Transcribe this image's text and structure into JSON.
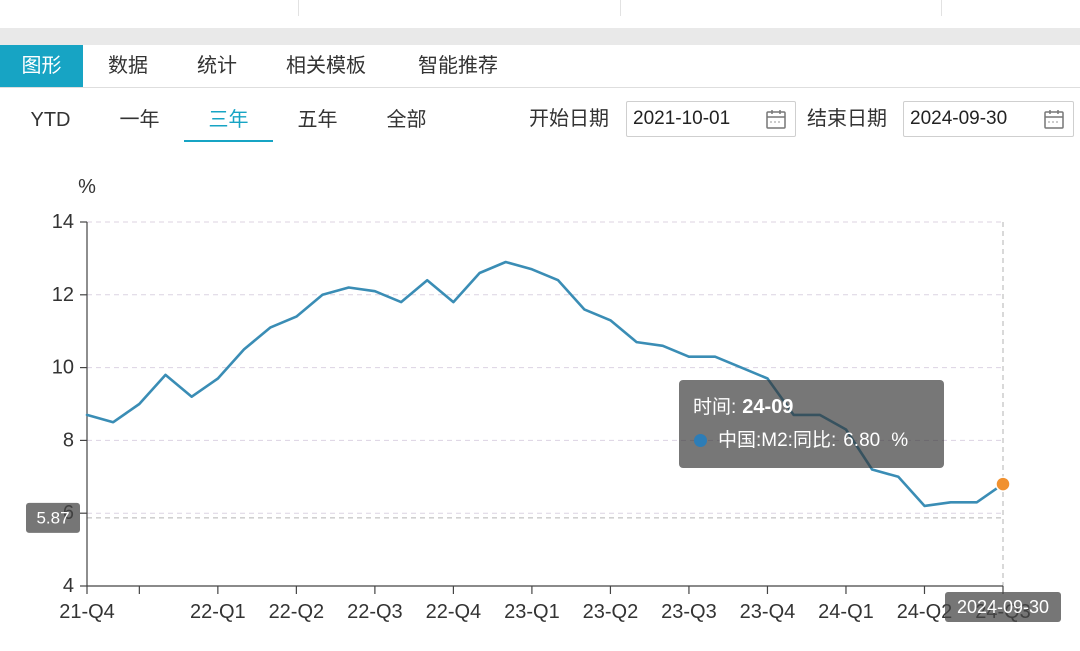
{
  "tabs": [
    {
      "label": "图形",
      "active": true
    },
    {
      "label": "数据",
      "active": false
    },
    {
      "label": "统计",
      "active": false
    },
    {
      "label": "相关模板",
      "active": false
    },
    {
      "label": "智能推荐",
      "active": false
    }
  ],
  "range_buttons": [
    {
      "label": "YTD",
      "active": false
    },
    {
      "label": "一年",
      "active": false
    },
    {
      "label": "三年",
      "active": true
    },
    {
      "label": "五年",
      "active": false
    },
    {
      "label": "全部",
      "active": false
    }
  ],
  "date_range": {
    "start_label": "开始日期",
    "start_value": "2021-10-01",
    "end_label": "结束日期",
    "end_value": "2024-09-30",
    "icon": "calendar-icon"
  },
  "colors": {
    "accent": "#17a4c4",
    "series": "#3a8db5",
    "tooltip_dot": "#2d7db7"
  },
  "chart_data": {
    "type": "line",
    "ylabel": "%",
    "ylim": [
      4,
      14
    ],
    "yticks": [
      4,
      6,
      8,
      10,
      12,
      14
    ],
    "grid": true,
    "x": [
      "2021-10",
      "2021-11",
      "2021-12",
      "2022-01",
      "2022-02",
      "2022-03",
      "2022-04",
      "2022-05",
      "2022-06",
      "2022-07",
      "2022-08",
      "2022-09",
      "2022-10",
      "2022-11",
      "2022-12",
      "2023-01",
      "2023-02",
      "2023-03",
      "2023-04",
      "2023-05",
      "2023-06",
      "2023-07",
      "2023-08",
      "2023-09",
      "2023-10",
      "2023-11",
      "2023-12",
      "2024-01",
      "2024-02",
      "2024-03",
      "2024-04",
      "2024-05",
      "2024-06",
      "2024-07",
      "2024-08",
      "2024-09"
    ],
    "x_ticks": [
      {
        "at": "2021-10",
        "label": "21-Q4"
      },
      {
        "at": "2021-12"
      },
      {
        "at": "2022-03",
        "label": "22-Q1"
      },
      {
        "at": "2022-06",
        "label": "22-Q2"
      },
      {
        "at": "2022-09",
        "label": "22-Q3"
      },
      {
        "at": "2022-12",
        "label": "22-Q4"
      },
      {
        "at": "2023-03",
        "label": "23-Q1"
      },
      {
        "at": "2023-06",
        "label": "23-Q2"
      },
      {
        "at": "2023-09",
        "label": "23-Q3"
      },
      {
        "at": "2023-12",
        "label": "23-Q4"
      },
      {
        "at": "2024-03",
        "label": "24-Q1"
      },
      {
        "at": "2024-06",
        "label": "24-Q2"
      },
      {
        "at": "2024-09",
        "label": "24-Q3"
      }
    ],
    "series": [
      {
        "name": "中国:M2:同比",
        "values": [
          8.7,
          8.5,
          9.0,
          9.8,
          9.2,
          9.7,
          10.5,
          11.1,
          11.4,
          12.0,
          12.2,
          12.1,
          11.8,
          12.4,
          11.8,
          12.6,
          12.9,
          12.7,
          12.4,
          11.6,
          11.3,
          10.7,
          10.6,
          10.3,
          10.3,
          10.0,
          9.7,
          8.7,
          8.7,
          8.3,
          7.2,
          7.0,
          6.2,
          6.3,
          6.3,
          6.8
        ]
      }
    ],
    "pointer": {
      "x": "2024-09",
      "y_value": 5.87,
      "x_label": "2024-09-30"
    },
    "highlight": {
      "x": "2024-09",
      "color": "#f1912f"
    }
  },
  "tooltip": {
    "time_label": "时间:",
    "time_value": "24-09",
    "series_label": "中国:M2:同比:",
    "value": "6.80",
    "unit": "%"
  }
}
